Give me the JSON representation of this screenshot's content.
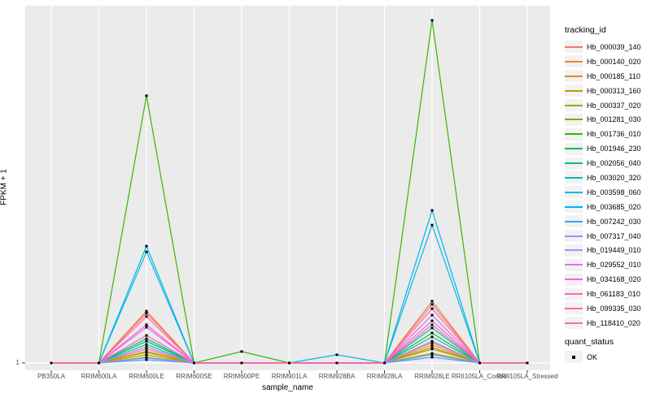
{
  "figure": {
    "background": "#FFFFFF",
    "panel_background": "#EBEBEB",
    "grid_color": "#FFFFFF",
    "tick_color": "#333333",
    "tick_label_color": "#4D4D4D",
    "point_color": "#000000"
  },
  "axes": {
    "y_title": "FPKM + 1",
    "x_title": "sample_name",
    "y_ticks": [
      "1"
    ]
  },
  "legend": {
    "tracking_title": "tracking_id",
    "quant_title": "quant_status",
    "quant_items": [
      {
        "label": "OK",
        "shape": "filled-square",
        "color": "#000000"
      }
    ]
  },
  "chart_data": {
    "type": "line",
    "title": "",
    "xlabel": "sample_name",
    "ylabel": "FPKM + 1",
    "y_scale": "log10-style axis of FPKM + 1; only labeled tick is 1 at the baseline",
    "value_units": "relative height above the y=1 baseline, as fraction of panel height (0 = FPKM+1 of 1 at baseline, 1 = panel top)",
    "grid": "vertical white gridlines at each sample; horizontal white gridline at y tick 1",
    "legend_position": "right",
    "categories": [
      "PB350LA",
      "RRIM600LA",
      "RRIM600LE",
      "RRIM600SE",
      "RRIM600PE",
      "RRIM901LA",
      "RRIM928BA",
      "RRIM928LA",
      "RRIM928LE",
      "RRII105LA_Control",
      "RRII105LA_Stressed"
    ],
    "series": [
      {
        "name": "Hb_000039_140",
        "color": "#F8766D",
        "values": [
          0,
          0,
          0.039,
          0,
          0,
          0,
          0,
          0,
          0.061,
          0,
          0
        ]
      },
      {
        "name": "Hb_000140_020",
        "color": "#EA8331",
        "values": [
          0,
          0,
          0.145,
          0,
          0,
          0,
          0,
          0,
          0.173,
          0,
          0
        ]
      },
      {
        "name": "Hb_000185_110",
        "color": "#D89000",
        "values": [
          0,
          0,
          0.023,
          0,
          0,
          0,
          0,
          0,
          0.039,
          0,
          0
        ]
      },
      {
        "name": "Hb_000313_160",
        "color": "#C09B00",
        "values": [
          0,
          0,
          0.032,
          0,
          0,
          0,
          0,
          0,
          0.05,
          0,
          0
        ]
      },
      {
        "name": "Hb_000337_020",
        "color": "#A3A500",
        "values": [
          0,
          0,
          0.03,
          0,
          0,
          0,
          0,
          0,
          0.043,
          0,
          0
        ]
      },
      {
        "name": "Hb_001281_030",
        "color": "#7CAE00",
        "values": [
          0,
          0,
          0.016,
          0,
          0,
          0,
          0,
          0,
          0.027,
          0,
          0
        ]
      },
      {
        "name": "Hb_001736_010",
        "color": "#39B600",
        "values": [
          0,
          0,
          0.748,
          0,
          0.032,
          0,
          0,
          0,
          0.959,
          0,
          0
        ]
      },
      {
        "name": "Hb_001946_230",
        "color": "#00BB4E",
        "values": [
          0,
          0,
          0.061,
          0,
          0,
          0,
          0,
          0,
          0.084,
          0,
          0
        ]
      },
      {
        "name": "Hb_002056_040",
        "color": "#00C087",
        "values": [
          0,
          0,
          0.068,
          0,
          0,
          0,
          0,
          0,
          0.098,
          0,
          0
        ]
      },
      {
        "name": "Hb_003020_320",
        "color": "#00C0B2",
        "values": [
          0,
          0,
          0.052,
          0,
          0,
          0,
          0,
          0,
          0.073,
          0,
          0
        ]
      },
      {
        "name": "Hb_003598_060",
        "color": "#00BCD8",
        "values": [
          0,
          0,
          0.327,
          0,
          0,
          0,
          0,
          0,
          0.386,
          0,
          0
        ]
      },
      {
        "name": "Hb_003685_020",
        "color": "#00B0F6",
        "values": [
          0,
          0,
          0.311,
          0,
          0,
          0,
          0.023,
          0,
          0.427,
          0,
          0
        ]
      },
      {
        "name": "Hb_007242_030",
        "color": "#35A2FF",
        "values": [
          0,
          0,
          0.009,
          0,
          0,
          0,
          0,
          0,
          0.016,
          0,
          0
        ]
      },
      {
        "name": "Hb_007317_040",
        "color": "#9590FF",
        "values": [
          0,
          0,
          0.014,
          0,
          0,
          0,
          0,
          0,
          0.023,
          0,
          0
        ]
      },
      {
        "name": "Hb_019449_010",
        "color": "#B983FF",
        "values": [
          0,
          0,
          0.045,
          0,
          0,
          0,
          0,
          0,
          0.057,
          0,
          0
        ]
      },
      {
        "name": "Hb_029552_010",
        "color": "#E76BF3",
        "values": [
          0,
          0,
          0.1,
          0,
          0,
          0,
          0,
          0,
          0.134,
          0,
          0
        ]
      },
      {
        "name": "Hb_034168_020",
        "color": "#FA62DB",
        "values": [
          0,
          0,
          0.107,
          0,
          0,
          0,
          0,
          0,
          0.118,
          0,
          0
        ]
      },
      {
        "name": "Hb_061183_010",
        "color": "#FF61C7",
        "values": [
          0,
          0,
          0.077,
          0,
          0,
          0,
          0,
          0,
          0.107,
          0,
          0
        ]
      },
      {
        "name": "Hb_099335_030",
        "color": "#FF689E",
        "values": [
          0,
          0,
          0.139,
          0,
          0,
          0,
          0,
          0,
          0.164,
          0,
          0
        ]
      },
      {
        "name": "Hb_118410_020",
        "color": "#FF6C91",
        "values": [
          0,
          0,
          0.13,
          0,
          0,
          0,
          0,
          0,
          0.152,
          0,
          0
        ]
      }
    ]
  }
}
